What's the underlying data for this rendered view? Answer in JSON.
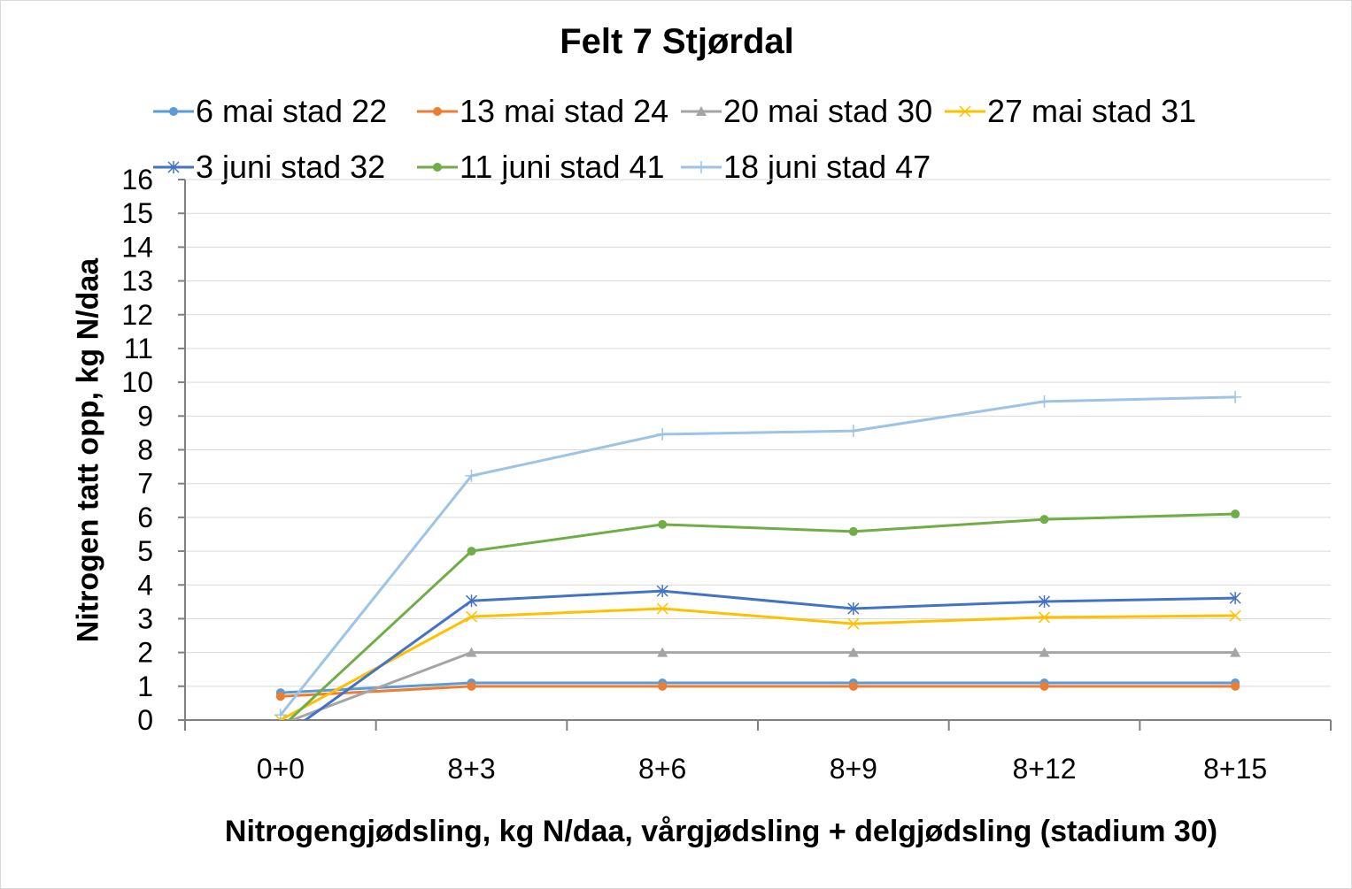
{
  "chart_data": {
    "type": "line",
    "title": "Felt 7 Stjørdal",
    "xlabel": "Nitrogengjødsling, kg N/daa, vårgjødsling + delgjødsling (stadium 30)",
    "ylabel": "Nitrogen tatt opp, kg N/daa",
    "categories": [
      "0+0",
      "8+3",
      "8+6",
      "8+9",
      "8+12",
      "8+15"
    ],
    "ylim": [
      0,
      16
    ],
    "yticks": [
      0,
      1,
      2,
      3,
      4,
      5,
      6,
      7,
      8,
      9,
      10,
      11,
      12,
      13,
      14,
      15,
      16
    ],
    "grid": true,
    "legend": "top",
    "series": [
      {
        "name": "6 mai stad 22",
        "color": "#5b9bd5",
        "marker": "circle",
        "values": [
          0.81,
          1.1,
          1.1,
          1.1,
          1.1,
          1.1
        ]
      },
      {
        "name": "13 mai stad 24",
        "color": "#ed7d31",
        "marker": "circle",
        "values": [
          0.7,
          1.0,
          1.0,
          1.0,
          1.0,
          1.0
        ]
      },
      {
        "name": "20 mai stad 30",
        "color": "#a5a5a5",
        "marker": "triangle",
        "values": [
          -0.13,
          2.0,
          2.0,
          2.0,
          2.0,
          2.0
        ]
      },
      {
        "name": "27 mai stad 31",
        "color": "#ffc000",
        "marker": "x",
        "values": [
          0.0,
          3.06,
          3.3,
          2.85,
          3.04,
          3.09
        ]
      },
      {
        "name": "3 juni stad 32",
        "color": "#4472c4",
        "marker": "star",
        "values": [
          -0.53,
          3.53,
          3.82,
          3.3,
          3.51,
          3.61
        ]
      },
      {
        "name": "11 juni stad 41",
        "color": "#70ad47",
        "marker": "circle",
        "values": [
          -0.24,
          5.0,
          5.79,
          5.58,
          5.94,
          6.1
        ]
      },
      {
        "name": "18 juni stad 47",
        "color": "#9dc3e6",
        "marker": "plus",
        "values": [
          0.15,
          7.23,
          8.46,
          8.56,
          9.43,
          9.56
        ]
      }
    ]
  }
}
